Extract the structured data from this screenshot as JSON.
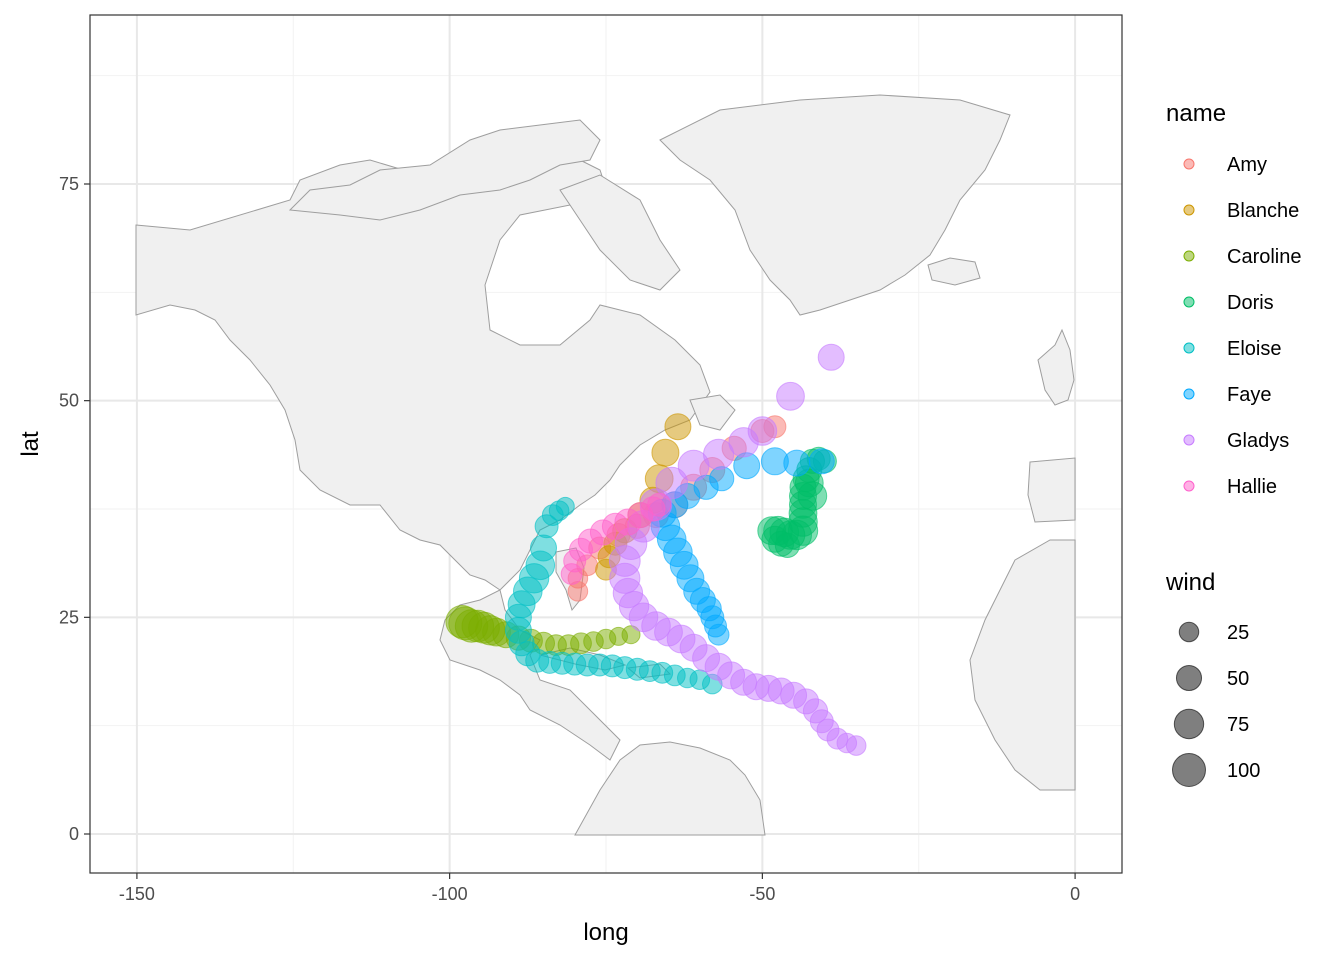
{
  "chart_data": {
    "type": "scatter",
    "title": "",
    "xlabel": "long",
    "ylabel": "lat",
    "xlim": [
      -157.5,
      7.5
    ],
    "ylim": [
      -4.5,
      94.5
    ],
    "x_ticks": [
      -150,
      -100,
      -50,
      0
    ],
    "x_tick_labels": [
      "-150",
      "-100",
      "-50",
      "0"
    ],
    "y_ticks": [
      0,
      25,
      50,
      75
    ],
    "y_tick_labels": [
      "0",
      "25",
      "50",
      "75"
    ],
    "grid": true,
    "background_map": "world countries (North America, Greenland, Caribbean, NW Africa, W Europe)",
    "colors": {
      "land_fill": "#f0f0f0",
      "land_border": "#9e9e9e",
      "grid_major": "#e8e8e8",
      "grid_minor": "#f2f2f2",
      "panel_border": "#333333"
    },
    "legend": {
      "position": "right",
      "color_title": "name",
      "size_title": "wind",
      "size_breaks": [
        {
          "label": "25",
          "value": 25
        },
        {
          "label": "50",
          "value": 50
        },
        {
          "label": "75",
          "value": 75
        },
        {
          "label": "100",
          "value": 100
        }
      ]
    },
    "series": [
      {
        "name": "Amy",
        "color": "#F8766D",
        "points": [
          [
            -79.5,
            28.0,
            25
          ],
          [
            -79.5,
            29.5,
            25
          ],
          [
            -78,
            31,
            30
          ],
          [
            -76,
            33,
            35
          ],
          [
            -73,
            34.5,
            40
          ],
          [
            -70,
            35.5,
            45
          ],
          [
            -67,
            36.8,
            50
          ],
          [
            -64,
            38,
            55
          ],
          [
            -61,
            40,
            55
          ],
          [
            -58,
            42,
            50
          ],
          [
            -54.5,
            44.5,
            45
          ],
          [
            -50,
            46.5,
            40
          ],
          [
            -48,
            47,
            35
          ]
        ]
      },
      {
        "name": "Blanche",
        "color": "#CD9600",
        "points": [
          [
            -75,
            30.5,
            30
          ],
          [
            -74.5,
            32,
            35
          ],
          [
            -73.5,
            33.5,
            40
          ],
          [
            -72,
            35,
            45
          ],
          [
            -69.5,
            36.8,
            50
          ],
          [
            -67.5,
            38.5,
            55
          ],
          [
            -66.5,
            41,
            65
          ],
          [
            -65.5,
            44,
            60
          ],
          [
            -63.5,
            47,
            55
          ]
        ]
      },
      {
        "name": "Caroline",
        "color": "#7CAE00",
        "points": [
          [
            -71,
            23,
            20
          ],
          [
            -73,
            22.8,
            20
          ],
          [
            -75,
            22.5,
            25
          ],
          [
            -77,
            22.2,
            25
          ],
          [
            -79,
            22,
            30
          ],
          [
            -81,
            21.8,
            30
          ],
          [
            -83,
            21.8,
            30
          ],
          [
            -85,
            22,
            35
          ],
          [
            -87,
            22.3,
            40
          ],
          [
            -89,
            22.6,
            45
          ],
          [
            -91,
            23,
            55
          ],
          [
            -92.5,
            23.3,
            65
          ],
          [
            -93.5,
            23.5,
            75
          ],
          [
            -94.5,
            23.8,
            85
          ],
          [
            -95.5,
            24,
            90
          ],
          [
            -96.5,
            24,
            95
          ],
          [
            -97.5,
            24.3,
            100
          ],
          [
            -98,
            24.5,
            95
          ]
        ]
      },
      {
        "name": "Doris",
        "color": "#00BE67",
        "points": [
          [
            -40,
            43,
            40
          ],
          [
            -41,
            43.3,
            40
          ],
          [
            -42,
            43,
            45
          ],
          [
            -42.5,
            42,
            50
          ],
          [
            -43,
            41,
            55
          ],
          [
            -43.5,
            40,
            55
          ],
          [
            -43.5,
            39,
            60
          ],
          [
            -43.5,
            38,
            60
          ],
          [
            -43.5,
            37,
            65
          ],
          [
            -43.5,
            36,
            70
          ],
          [
            -43.5,
            35,
            75
          ],
          [
            -44.5,
            34.5,
            75
          ],
          [
            -45.5,
            34.5,
            70
          ],
          [
            -46.5,
            34.8,
            70
          ],
          [
            -47.5,
            35,
            70
          ],
          [
            -48.5,
            35,
            65
          ],
          [
            -48,
            34,
            55
          ],
          [
            -47,
            33.5,
            50
          ],
          [
            -46,
            33.3,
            45
          ],
          [
            -42.5,
            40.5,
            65
          ],
          [
            -42,
            39,
            70
          ]
        ]
      },
      {
        "name": "Eloise",
        "color": "#00BFC4",
        "points": [
          [
            -58,
            17.3,
            25
          ],
          [
            -60,
            17.8,
            25
          ],
          [
            -62,
            18,
            25
          ],
          [
            -64,
            18.3,
            30
          ],
          [
            -66,
            18.6,
            30
          ],
          [
            -68,
            18.8,
            30
          ],
          [
            -70,
            19,
            35
          ],
          [
            -72,
            19.2,
            35
          ],
          [
            -74,
            19.4,
            35
          ],
          [
            -76,
            19.5,
            35
          ],
          [
            -78,
            19.5,
            35
          ],
          [
            -80,
            19.6,
            35
          ],
          [
            -82,
            19.7,
            35
          ],
          [
            -84,
            19.8,
            35
          ],
          [
            -86,
            20,
            40
          ],
          [
            -87.5,
            20.8,
            45
          ],
          [
            -88.5,
            22,
            50
          ],
          [
            -89,
            23.5,
            55
          ],
          [
            -89,
            25,
            55
          ],
          [
            -88.5,
            26.5,
            60
          ],
          [
            -87.5,
            28,
            70
          ],
          [
            -86.5,
            29.5,
            75
          ],
          [
            -85.5,
            31,
            70
          ],
          [
            -85,
            33,
            55
          ],
          [
            -84.5,
            35.5,
            40
          ],
          [
            -83.5,
            36.8,
            30
          ],
          [
            -82.5,
            37.3,
            25
          ],
          [
            -81.5,
            37.8,
            20
          ]
        ]
      },
      {
        "name": "Faye",
        "color": "#00A9FF",
        "points": [
          [
            -57,
            23,
            30
          ],
          [
            -57.5,
            24,
            35
          ],
          [
            -58,
            25,
            40
          ],
          [
            -58.5,
            26,
            45
          ],
          [
            -59.5,
            27,
            50
          ],
          [
            -60.5,
            28,
            55
          ],
          [
            -61.5,
            29.5,
            60
          ],
          [
            -62.5,
            31,
            65
          ],
          [
            -63.5,
            32.5,
            70
          ],
          [
            -64.5,
            34,
            70
          ],
          [
            -65.5,
            35.5,
            70
          ],
          [
            -66,
            37,
            65
          ],
          [
            -64,
            38,
            55
          ],
          [
            -62,
            39,
            50
          ],
          [
            -59,
            40,
            45
          ],
          [
            -56.5,
            41,
            45
          ],
          [
            -52.5,
            42.5,
            55
          ],
          [
            -48,
            43,
            60
          ],
          [
            -44.5,
            42.8,
            55
          ],
          [
            -40.5,
            43,
            50
          ]
        ]
      },
      {
        "name": "Gladys",
        "color": "#C77CFF",
        "points": [
          [
            -35,
            10.2,
            25
          ],
          [
            -36.5,
            10.5,
            25
          ],
          [
            -38,
            11,
            30
          ],
          [
            -39.5,
            12,
            35
          ],
          [
            -40.5,
            13,
            40
          ],
          [
            -41.5,
            14.2,
            45
          ],
          [
            -43,
            15.3,
            50
          ],
          [
            -45,
            16,
            55
          ],
          [
            -47,
            16.5,
            55
          ],
          [
            -49,
            16.8,
            55
          ],
          [
            -51,
            17,
            55
          ],
          [
            -53,
            17.5,
            55
          ],
          [
            -55,
            18.3,
            60
          ],
          [
            -57,
            19.3,
            60
          ],
          [
            -59,
            20.3,
            60
          ],
          [
            -61,
            21.5,
            60
          ],
          [
            -63,
            22.5,
            65
          ],
          [
            -65,
            23.3,
            65
          ],
          [
            -67,
            24,
            70
          ],
          [
            -69,
            25,
            70
          ],
          [
            -70.5,
            26.3,
            75
          ],
          [
            -71.5,
            27.8,
            75
          ],
          [
            -72,
            29.5,
            80
          ],
          [
            -72,
            31.5,
            85
          ],
          [
            -71,
            33.5,
            90
          ],
          [
            -69,
            35.5,
            90
          ],
          [
            -67,
            38,
            90
          ],
          [
            -64.5,
            40.5,
            90
          ],
          [
            -61,
            42.5,
            85
          ],
          [
            -57,
            43.8,
            80
          ],
          [
            -53,
            45.2,
            75
          ],
          [
            -50,
            46.5,
            70
          ],
          [
            -45.5,
            50.5,
            65
          ],
          [
            -39,
            55,
            55
          ]
        ]
      },
      {
        "name": "Hallie",
        "color": "#FF61CC",
        "points": [
          [
            -80.5,
            30,
            30
          ],
          [
            -80,
            31.5,
            35
          ],
          [
            -79,
            32.8,
            40
          ],
          [
            -77.5,
            33.8,
            45
          ],
          [
            -75.5,
            34.8,
            50
          ],
          [
            -73.5,
            35.5,
            55
          ],
          [
            -71.5,
            36,
            55
          ],
          [
            -69.5,
            36.8,
            50
          ],
          [
            -67.5,
            37.5,
            45
          ],
          [
            -66.5,
            38,
            40
          ]
        ]
      }
    ]
  }
}
